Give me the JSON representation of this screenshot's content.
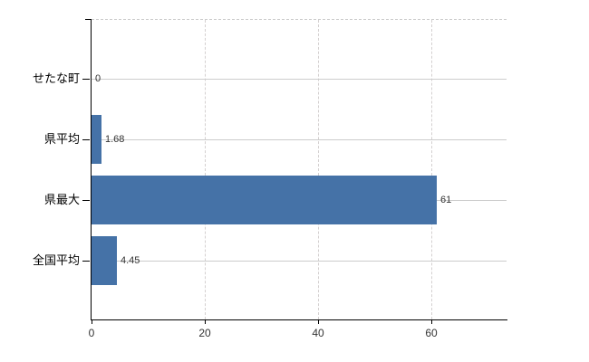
{
  "chart": {
    "background_color": "#ffffff",
    "bar_color": "#4572a7",
    "grid_color": "#cccccc",
    "axis_color": "#000000",
    "label_color": "#333333"
  },
  "chart_data": {
    "type": "bar",
    "orientation": "horizontal",
    "title": "",
    "xlabel": "",
    "ylabel": "",
    "categories": [
      "せたな町",
      "県平均",
      "県最大",
      "全国平均"
    ],
    "values": [
      0,
      1.68,
      61,
      4.45
    ],
    "value_labels": [
      "0",
      "1.68",
      "61",
      "4.45"
    ],
    "x_ticks": [
      0,
      20,
      40,
      60
    ],
    "x_tick_labels": [
      "0",
      "20",
      "40",
      "60"
    ],
    "xlim": [
      0,
      73.3
    ],
    "grid": true,
    "legend_position": "none"
  }
}
